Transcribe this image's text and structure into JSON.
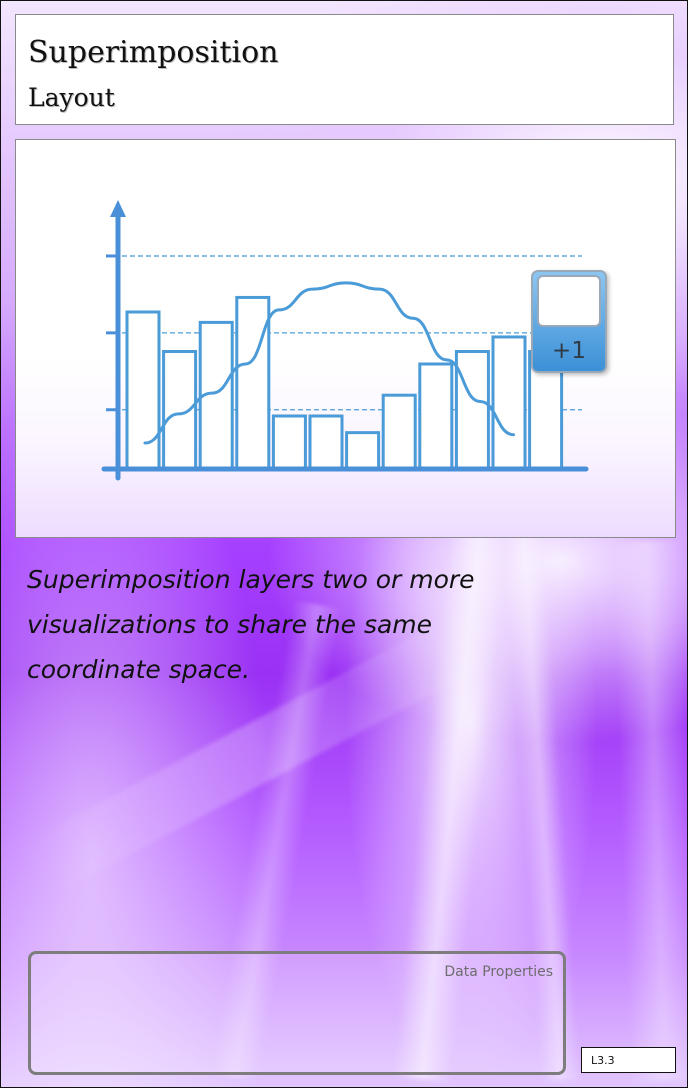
{
  "header": {
    "title": "Superimposition",
    "subtitle": "Layout"
  },
  "illustration": {
    "counter_badge": "+1",
    "bar_values": [
      0.75,
      0.56,
      0.7,
      0.82,
      0.25,
      0.25,
      0.17,
      0.35,
      0.5,
      0.56,
      0.63,
      0.56
    ],
    "curve_values": [
      0.12,
      0.26,
      0.36,
      0.5,
      0.76,
      0.86,
      0.89,
      0.86,
      0.72,
      0.52,
      0.32,
      0.16
    ],
    "accent_color": "#4a9bd8",
    "axis_color": "#4a90d9"
  },
  "description": "Superimposition layers two or more visualizations to share the same coordinate space.",
  "data_properties": {
    "label": "Data Properties"
  },
  "card_code": "L3.3"
}
